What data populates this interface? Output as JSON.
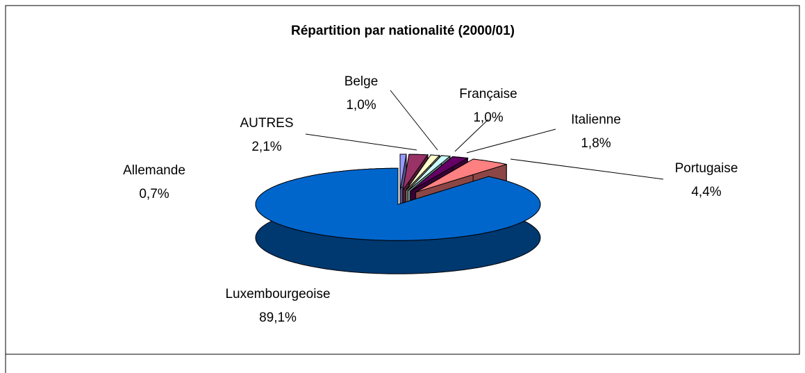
{
  "chart_data": {
    "type": "pie",
    "title": "Répartition par nationalité (2000/01)",
    "categories": [
      "Allemande",
      "AUTRES",
      "Belge",
      "Française",
      "Italienne",
      "Portugaise",
      "Luxembourgeoise"
    ],
    "values": [
      0.7,
      2.1,
      1.0,
      1.0,
      1.8,
      4.4,
      89.1
    ],
    "value_labels": [
      "0,7%",
      "2,1%",
      "1,0%",
      "1,0%",
      "1,8%",
      "4,4%",
      "89,1%"
    ],
    "colors": [
      "#9999ff",
      "#993366",
      "#ffffcc",
      "#ccffff",
      "#660066",
      "#ff8080",
      "#0066cc"
    ]
  }
}
